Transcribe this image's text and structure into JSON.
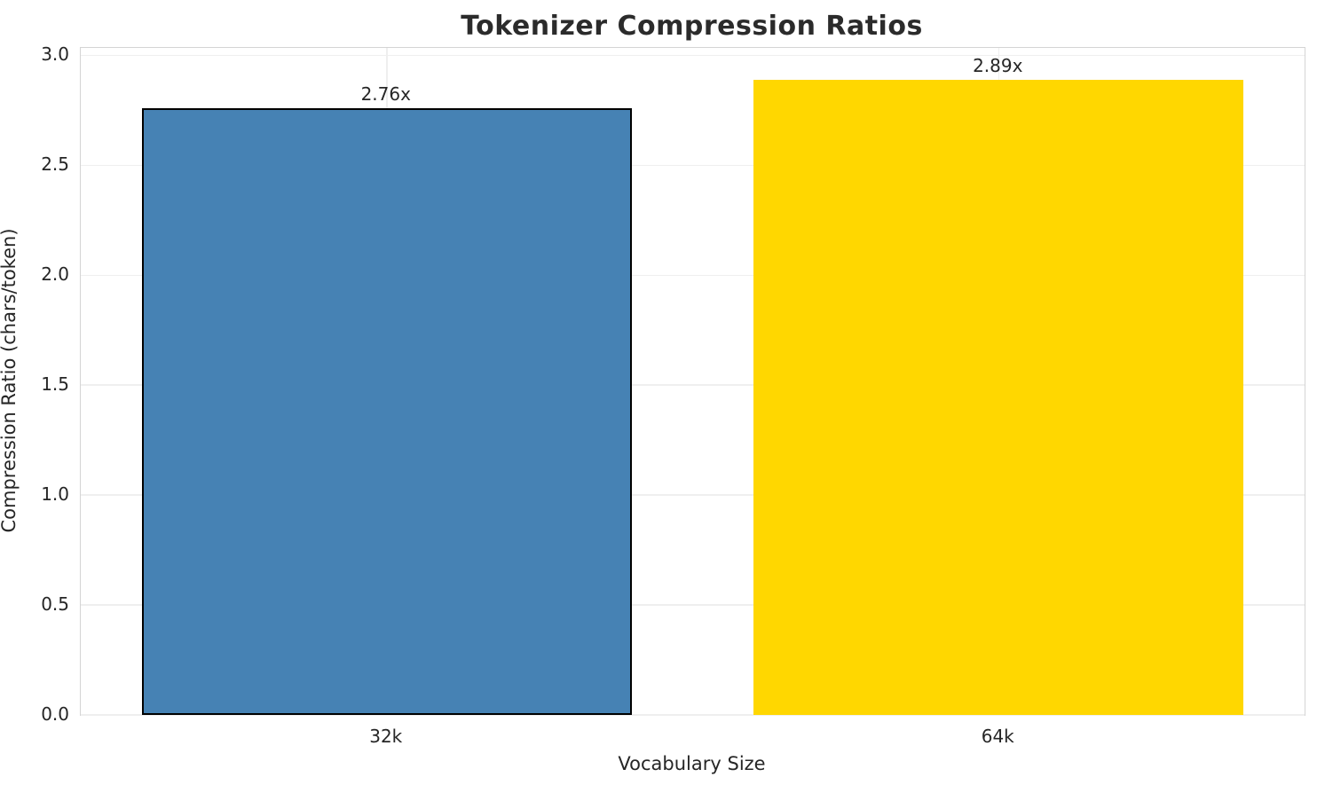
{
  "chart_data": {
    "type": "bar",
    "title": "Tokenizer Compression Ratios",
    "xlabel": "Vocabulary Size",
    "ylabel": "Compression Ratio (chars/token)",
    "categories": [
      "32k",
      "64k"
    ],
    "values": [
      2.76,
      2.89
    ],
    "value_labels": [
      "2.76x",
      "2.89x"
    ],
    "bar_colors": [
      "#4682B4",
      "#FFD700"
    ],
    "bar_edge_colors": [
      "#000000",
      "none"
    ],
    "bar_edge_width": 2.5,
    "bar_width_fraction": 0.8,
    "ylim": [
      0,
      3.034
    ],
    "yticks": [
      0.0,
      0.5,
      1.0,
      1.5,
      2.0,
      2.5,
      3.0
    ],
    "ytick_labels": [
      "0.0",
      "0.5",
      "1.0",
      "1.5",
      "2.0",
      "2.5",
      "3.0"
    ],
    "grid": true,
    "grid_axis": "both",
    "legend": "none",
    "grid_color": "#efefef",
    "spine_color": "#d4d4d4",
    "text_color": "#262626",
    "background_color": "#ffffff"
  }
}
